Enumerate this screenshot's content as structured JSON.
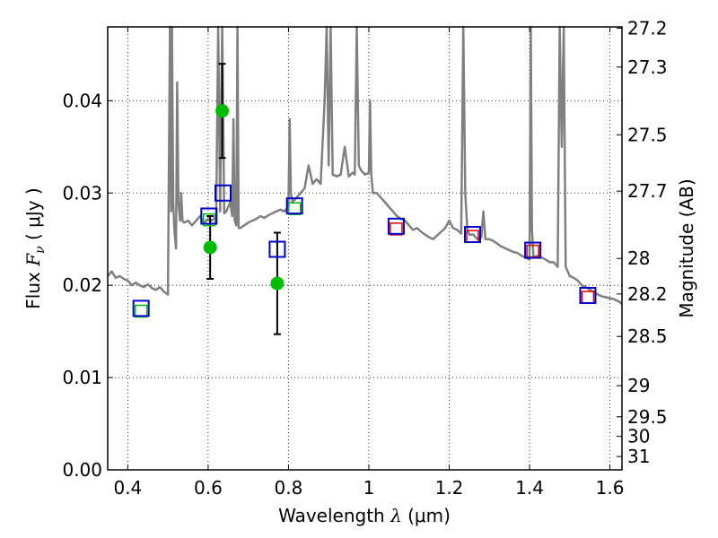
{
  "chart_data": {
    "type": "line",
    "title": "",
    "xlabel": "Wavelength  λ (μm)",
    "ylabel": "Flux  F_ν  ( μJy )",
    "ylabel_parts": {
      "pre": "Flux  ",
      "symbol": "F",
      "sub": "ν",
      "post": "  (  μJy )"
    },
    "xlabel_parts": {
      "pre": "Wavelength  ",
      "symbol": "λ",
      "post": " (μm)"
    },
    "y2label": "Magnitude (AB)",
    "xlim": [
      0.35,
      1.63
    ],
    "ylim": [
      0.0,
      0.048
    ],
    "grid": true,
    "x_ticks": [
      {
        "value": 0.4,
        "label": "0.4"
      },
      {
        "value": 0.6,
        "label": "0.6"
      },
      {
        "value": 0.8,
        "label": "0.8"
      },
      {
        "value": 1.0,
        "label": "1"
      },
      {
        "value": 1.2,
        "label": "1.2"
      },
      {
        "value": 1.4,
        "label": "1.4"
      },
      {
        "value": 1.6,
        "label": "1.6"
      }
    ],
    "y_ticks": [
      {
        "value": 0.0,
        "label": "0.00"
      },
      {
        "value": 0.01,
        "label": "0.01"
      },
      {
        "value": 0.02,
        "label": "0.02"
      },
      {
        "value": 0.03,
        "label": "0.03"
      },
      {
        "value": 0.04,
        "label": "0.04"
      }
    ],
    "y2_ticks": [
      {
        "value": 27.2,
        "label": "27.2"
      },
      {
        "value": 27.3,
        "label": "27.3"
      },
      {
        "value": 27.5,
        "label": "27.5"
      },
      {
        "value": 27.7,
        "label": "27.7"
      },
      {
        "value": 28.0,
        "label": "28"
      },
      {
        "value": 28.2,
        "label": "28.2"
      },
      {
        "value": 28.5,
        "label": "28.5"
      },
      {
        "value": 29.0,
        "label": "29"
      },
      {
        "value": 29.5,
        "label": "29.5"
      },
      {
        "value": 30.0,
        "label": "30"
      },
      {
        "value": 31.0,
        "label": "31"
      }
    ],
    "series": [
      {
        "kind": "spectrum",
        "color": "#808080",
        "x": [
          0.35,
          0.36,
          0.37,
          0.38,
          0.39,
          0.4,
          0.41,
          0.42,
          0.43,
          0.44,
          0.45,
          0.46,
          0.47,
          0.48,
          0.49,
          0.5,
          0.505,
          0.508,
          0.51,
          0.513,
          0.516,
          0.52,
          0.523,
          0.526,
          0.53,
          0.533,
          0.536,
          0.54,
          0.55,
          0.56,
          0.57,
          0.58,
          0.59,
          0.6,
          0.61,
          0.62,
          0.625,
          0.63,
          0.635,
          0.64,
          0.645,
          0.65,
          0.655,
          0.66,
          0.663,
          0.666,
          0.67,
          0.673,
          0.676,
          0.68,
          0.69,
          0.7,
          0.71,
          0.72,
          0.73,
          0.74,
          0.75,
          0.76,
          0.77,
          0.78,
          0.79,
          0.8,
          0.803,
          0.806,
          0.81,
          0.82,
          0.83,
          0.84,
          0.85,
          0.86,
          0.87,
          0.88,
          0.89,
          0.895,
          0.9,
          0.905,
          0.91,
          0.92,
          0.93,
          0.94,
          0.95,
          0.96,
          0.965,
          0.97,
          0.975,
          0.98,
          0.99,
          1.0,
          1.003,
          1.006,
          1.01,
          1.02,
          1.03,
          1.04,
          1.05,
          1.06,
          1.07,
          1.08,
          1.09,
          1.1,
          1.11,
          1.12,
          1.13,
          1.14,
          1.15,
          1.16,
          1.17,
          1.18,
          1.19,
          1.2,
          1.21,
          1.22,
          1.23,
          1.235,
          1.24,
          1.245,
          1.25,
          1.26,
          1.27,
          1.28,
          1.285,
          1.29,
          1.3,
          1.31,
          1.32,
          1.33,
          1.34,
          1.35,
          1.36,
          1.37,
          1.38,
          1.39,
          1.4,
          1.403,
          1.406,
          1.41,
          1.42,
          1.43,
          1.44,
          1.45,
          1.46,
          1.47,
          1.475,
          1.48,
          1.485,
          1.49,
          1.5,
          1.51,
          1.52,
          1.53,
          1.54,
          1.55,
          1.56,
          1.57,
          1.58,
          1.59,
          1.6,
          1.61,
          1.62,
          1.63
        ],
        "y": [
          0.021,
          0.0215,
          0.0208,
          0.021,
          0.0207,
          0.0205,
          0.02,
          0.0203,
          0.02,
          0.0198,
          0.0201,
          0.0197,
          0.0195,
          0.0198,
          0.0193,
          0.019,
          0.048,
          0.028,
          0.048,
          0.029,
          0.026,
          0.024,
          0.042,
          0.029,
          0.027,
          0.03,
          0.027,
          0.0268,
          0.027,
          0.0265,
          0.027,
          0.0275,
          0.0268,
          0.0272,
          0.027,
          0.0275,
          0.048,
          0.028,
          0.048,
          0.0278,
          0.028,
          0.0285,
          0.029,
          0.0275,
          0.038,
          0.027,
          0.0265,
          0.048,
          0.0262,
          0.0262,
          0.0265,
          0.0268,
          0.027,
          0.0272,
          0.0275,
          0.0273,
          0.0276,
          0.0278,
          0.028,
          0.0282,
          0.028,
          0.0285,
          0.038,
          0.03,
          0.029,
          0.0295,
          0.03,
          0.0305,
          0.033,
          0.031,
          0.0315,
          0.031,
          0.04,
          0.048,
          0.033,
          0.048,
          0.032,
          0.0318,
          0.032,
          0.035,
          0.0318,
          0.0322,
          0.032,
          0.048,
          0.033,
          0.0325,
          0.032,
          0.0322,
          0.04,
          0.032,
          0.03,
          0.03,
          0.0295,
          0.029,
          0.0285,
          0.028,
          0.0275,
          0.0272,
          0.027,
          0.0265,
          0.026,
          0.0262,
          0.0258,
          0.0255,
          0.0252,
          0.025,
          0.0254,
          0.0258,
          0.0262,
          0.027,
          0.0262,
          0.026,
          0.0256,
          0.048,
          0.03,
          0.026,
          0.0255,
          0.0255,
          0.025,
          0.0252,
          0.028,
          0.025,
          0.025,
          0.0248,
          0.0245,
          0.0242,
          0.024,
          0.0238,
          0.0236,
          0.0235,
          0.0232,
          0.023,
          0.0228,
          0.048,
          0.026,
          0.023,
          0.0232,
          0.023,
          0.0228,
          0.0225,
          0.0225,
          0.022,
          0.048,
          0.035,
          0.048,
          0.022,
          0.021,
          0.0208,
          0.0205,
          0.02,
          0.0198,
          0.0195,
          0.0193,
          0.019,
          0.0188,
          0.0187,
          0.0186,
          0.0185,
          0.0183,
          0.018
        ]
      },
      {
        "kind": "points",
        "name": "",
        "marker": "circle",
        "color": "#00bb00",
        "x": [
          0.605,
          0.635,
          0.772
        ],
        "y": [
          0.0241,
          0.0389,
          0.0202
        ],
        "yerr": [
          0.0034,
          0.0051,
          0.0055
        ]
      },
      {
        "kind": "points",
        "name": "",
        "marker": "open-square",
        "color": "#00bb00",
        "x": [
          0.433,
          0.603,
          0.815
        ],
        "y": [
          0.0172,
          0.0271,
          0.0283
        ]
      },
      {
        "kind": "points",
        "name": "",
        "marker": "open-square",
        "color": "#dd0000",
        "x": [
          1.068,
          1.258,
          1.408,
          1.545
        ],
        "y": [
          0.0261,
          0.0253,
          0.0237,
          0.0187
        ]
      },
      {
        "kind": "points",
        "name": "",
        "marker": "open-square-large",
        "color": "#0000cc",
        "x": [
          0.433,
          0.602,
          0.637,
          0.772,
          0.815,
          1.068,
          1.258,
          1.408,
          1.545
        ],
        "y": [
          0.0175,
          0.0275,
          0.03,
          0.0239,
          0.0286,
          0.0264,
          0.0255,
          0.0238,
          0.0189
        ]
      }
    ]
  }
}
